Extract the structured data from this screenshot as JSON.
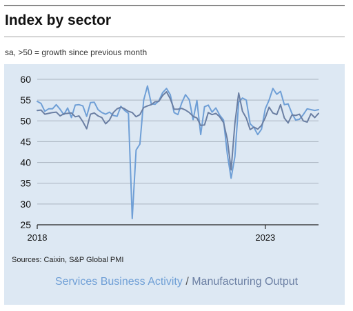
{
  "title": "Index by sector",
  "subtitle": "sa, >50 = growth since previous month",
  "source": "Sources: Caixin, S&P Global PMI",
  "legend": {
    "separator": "/"
  },
  "chart_data": {
    "type": "line",
    "title": "Index by sector",
    "subtitle": "sa, >50 = growth since previous month",
    "xlabel": "",
    "ylabel": "",
    "x_start": "2018-01",
    "x_end": "2024-03",
    "xticks": [
      "2018",
      "2023"
    ],
    "yticks": [
      25,
      30,
      35,
      40,
      45,
      50,
      55,
      60
    ],
    "ylim": [
      25,
      60
    ],
    "grid": "horizontal",
    "series": [
      {
        "name": "Services Business Activity",
        "color": "#6f9fd6",
        "values": [
          54.7,
          54.2,
          52.3,
          52.9,
          52.9,
          53.9,
          52.8,
          51.5,
          53.1,
          50.8,
          53.8,
          53.9,
          53.6,
          51.1,
          54.4,
          54.5,
          52.7,
          52.0,
          51.6,
          52.1,
          51.3,
          51.1,
          53.5,
          52.5,
          51.8,
          26.5,
          43.0,
          44.4,
          55.0,
          58.4,
          54.1,
          54.0,
          54.8,
          56.8,
          57.8,
          56.3,
          52.0,
          51.5,
          54.3,
          56.3,
          55.1,
          50.3,
          54.9,
          46.7,
          53.4,
          53.8,
          52.1,
          53.1,
          51.4,
          50.2,
          42.0,
          36.2,
          41.4,
          54.5,
          55.5,
          55.0,
          49.3,
          48.4,
          46.7,
          48.0,
          52.9,
          55.0,
          57.8,
          56.4,
          57.1,
          53.9,
          54.1,
          51.8,
          50.2,
          50.4,
          51.5,
          52.9,
          52.7,
          52.5,
          52.7
        ]
      },
      {
        "name": "Manufacturing Output",
        "color": "#6b7fa3",
        "values": [
          52.5,
          52.6,
          51.6,
          51.8,
          52.0,
          52.1,
          51.2,
          51.7,
          51.8,
          51.9,
          51.0,
          51.2,
          49.8,
          48.1,
          51.6,
          51.9,
          51.2,
          50.8,
          49.3,
          50.2,
          52.0,
          52.9,
          53.3,
          52.9,
          52.3,
          52.0,
          51.0,
          51.5,
          53.2,
          53.6,
          53.9,
          54.6,
          54.7,
          56.1,
          57.0,
          55.3,
          52.8,
          52.8,
          53.0,
          52.6,
          52.0,
          51.1,
          50.7,
          48.9,
          49.0,
          52.0,
          51.5,
          51.8,
          51.0,
          49.6,
          45.6,
          38.2,
          49.4,
          56.7,
          52.3,
          50.7,
          47.9,
          48.5,
          48.0,
          48.9,
          50.8,
          53.3,
          51.9,
          51.5,
          53.9,
          50.7,
          49.5,
          51.4,
          51.3,
          51.6,
          50.0,
          49.7,
          51.7,
          50.8,
          51.8
        ]
      }
    ]
  }
}
